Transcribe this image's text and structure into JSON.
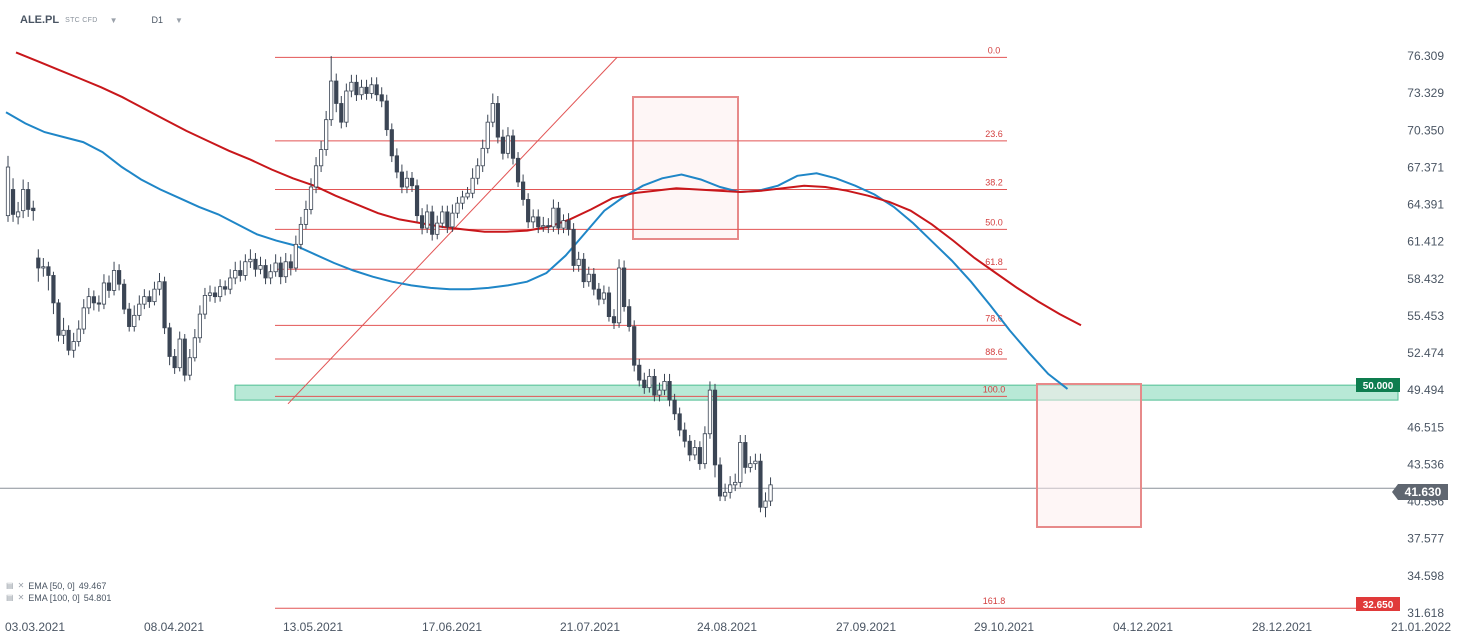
{
  "header": {
    "symbol": "ALE.PL",
    "instrument": "STC CFD",
    "timeframe": "D1"
  },
  "indicators": [
    {
      "label": "EMA [50, 0]",
      "value": "49.467",
      "color": "#1f86c7"
    },
    {
      "label": "EMA [100, 0]",
      "value": "54.801",
      "color": "#c8171b"
    }
  ],
  "chart_data": {
    "type": "candlestick",
    "y_ticks": [
      "76.309",
      "73.329",
      "70.350",
      "67.371",
      "64.391",
      "61.412",
      "58.432",
      "55.453",
      "52.474",
      "49.494",
      "46.515",
      "43.536",
      "40.556",
      "37.577",
      "34.598",
      "31.618"
    ],
    "ylim": [
      31.618,
      76.309
    ],
    "x_ticks": [
      "03.03.2021",
      "08.04.2021",
      "13.05.2021",
      "17.06.2021",
      "21.07.2021",
      "24.08.2021",
      "27.09.2021",
      "29.10.2021",
      "04.12.2021",
      "28.12.2021",
      "21.01.2022"
    ],
    "fib_levels": [
      {
        "label": "0.0",
        "value": 76.2
      },
      {
        "label": "23.6",
        "value": 69.5
      },
      {
        "label": "38.2",
        "value": 65.6
      },
      {
        "label": "50.0",
        "value": 62.4
      },
      {
        "label": "61.8",
        "value": 59.2
      },
      {
        "label": "78.6",
        "value": 54.7
      },
      {
        "label": "88.6",
        "value": 52.0
      },
      {
        "label": "100.0",
        "value": 49.0
      },
      {
        "label": "161.8",
        "value": 32.0
      }
    ],
    "price_labels": [
      {
        "value": "50.000",
        "color": "#0e7d4f"
      },
      {
        "value": "41.630",
        "color": "#5f6670"
      },
      {
        "value": "32.650",
        "color": "#e03a3a"
      }
    ],
    "support_zone": {
      "low": 48.7,
      "high": 49.9
    },
    "candles": [
      [
        63.5,
        67.4,
        63.0,
        68.3
      ],
      [
        65.6,
        63.6,
        63.0,
        66.5
      ],
      [
        63.4,
        63.8,
        62.8,
        64.6
      ],
      [
        63.9,
        65.6,
        63.3,
        66.4
      ],
      [
        65.6,
        64.0,
        63.4,
        66.2
      ],
      [
        64.1,
        63.9,
        63.1,
        64.7
      ],
      [
        60.1,
        59.3,
        58.2,
        60.8
      ],
      [
        59.3,
        59.4,
        58.6,
        60.1
      ],
      [
        59.4,
        58.7,
        57.5,
        59.8
      ],
      [
        58.7,
        56.5,
        55.6,
        59.0
      ],
      [
        56.5,
        53.9,
        53.4,
        56.8
      ],
      [
        53.9,
        54.3,
        53.2,
        55.3
      ],
      [
        54.3,
        52.7,
        52.3,
        54.7
      ],
      [
        52.7,
        53.4,
        52.1,
        54.1
      ],
      [
        53.4,
        54.4,
        53.0,
        55.1
      ],
      [
        54.4,
        56.1,
        54.0,
        56.8
      ],
      [
        56.1,
        57.0,
        55.6,
        57.7
      ],
      [
        57.0,
        56.5,
        55.9,
        57.5
      ],
      [
        56.5,
        56.4,
        55.8,
        57.1
      ],
      [
        56.4,
        58.1,
        56.0,
        58.8
      ],
      [
        58.1,
        57.5,
        56.9,
        58.7
      ],
      [
        57.5,
        59.1,
        57.1,
        59.8
      ],
      [
        59.1,
        58.0,
        57.5,
        59.6
      ],
      [
        58.0,
        56.0,
        55.6,
        58.4
      ],
      [
        56.0,
        54.6,
        54.2,
        56.5
      ],
      [
        54.6,
        55.5,
        54.2,
        56.3
      ],
      [
        55.5,
        56.4,
        55.1,
        57.1
      ],
      [
        56.4,
        57.0,
        56.0,
        57.6
      ],
      [
        57.0,
        56.6,
        56.1,
        57.5
      ],
      [
        56.6,
        57.6,
        56.3,
        58.2
      ],
      [
        57.6,
        58.2,
        57.1,
        58.9
      ],
      [
        58.2,
        54.5,
        54.0,
        58.6
      ],
      [
        54.5,
        52.2,
        51.5,
        54.9
      ],
      [
        52.2,
        51.3,
        50.8,
        52.8
      ],
      [
        51.3,
        53.6,
        51.0,
        54.2
      ],
      [
        53.6,
        50.7,
        50.2,
        54.0
      ],
      [
        50.7,
        52.1,
        50.3,
        52.8
      ],
      [
        52.1,
        53.7,
        51.8,
        54.4
      ],
      [
        53.7,
        55.6,
        53.3,
        56.3
      ],
      [
        55.6,
        57.1,
        55.2,
        57.7
      ],
      [
        57.1,
        57.3,
        56.6,
        57.9
      ],
      [
        57.3,
        57.0,
        56.5,
        57.8
      ],
      [
        57.0,
        57.8,
        56.6,
        58.4
      ],
      [
        57.8,
        57.6,
        57.1,
        58.3
      ],
      [
        57.6,
        58.5,
        57.2,
        59.2
      ],
      [
        58.5,
        59.1,
        58.0,
        59.8
      ],
      [
        59.1,
        58.7,
        58.2,
        59.9
      ],
      [
        58.7,
        59.8,
        58.3,
        60.4
      ],
      [
        59.8,
        60.0,
        59.3,
        60.8
      ],
      [
        60.0,
        59.2,
        58.6,
        60.5
      ],
      [
        59.2,
        59.5,
        58.8,
        60.2
      ],
      [
        59.5,
        58.5,
        58.0,
        60.0
      ],
      [
        58.5,
        59.0,
        58.0,
        59.6
      ],
      [
        59.0,
        59.7,
        58.6,
        60.4
      ],
      [
        59.7,
        58.6,
        58.0,
        60.2
      ],
      [
        58.6,
        59.8,
        58.1,
        60.5
      ],
      [
        59.8,
        59.3,
        58.7,
        60.4
      ],
      [
        59.3,
        61.2,
        59.0,
        61.9
      ],
      [
        61.2,
        62.8,
        60.8,
        63.4
      ],
      [
        62.8,
        64.0,
        62.4,
        64.7
      ],
      [
        64.0,
        65.8,
        63.6,
        66.5
      ],
      [
        65.8,
        67.5,
        65.3,
        68.2
      ],
      [
        67.5,
        68.8,
        67.0,
        69.5
      ],
      [
        68.8,
        71.2,
        68.3,
        71.9
      ],
      [
        71.2,
        74.3,
        70.7,
        76.3
      ],
      [
        74.3,
        72.5,
        71.8,
        74.9
      ],
      [
        72.5,
        71.0,
        70.5,
        73.1
      ],
      [
        71.0,
        73.5,
        70.6,
        74.1
      ],
      [
        73.5,
        74.2,
        73.0,
        74.8
      ],
      [
        74.2,
        73.2,
        72.7,
        74.8
      ],
      [
        73.2,
        73.8,
        72.8,
        74.4
      ],
      [
        73.8,
        73.3,
        72.8,
        74.4
      ],
      [
        73.3,
        74.0,
        72.9,
        74.6
      ],
      [
        74.0,
        73.2,
        72.7,
        74.6
      ],
      [
        73.2,
        72.7,
        72.2,
        73.8
      ],
      [
        72.7,
        70.4,
        69.9,
        73.2
      ],
      [
        70.4,
        68.3,
        67.8,
        70.9
      ],
      [
        68.3,
        67.0,
        66.5,
        68.9
      ],
      [
        67.0,
        65.8,
        65.3,
        67.6
      ],
      [
        65.8,
        66.5,
        65.3,
        67.1
      ],
      [
        66.5,
        65.9,
        65.4,
        67.0
      ],
      [
        65.9,
        63.5,
        63.0,
        66.4
      ],
      [
        63.5,
        62.5,
        62.0,
        64.1
      ],
      [
        62.5,
        63.8,
        62.1,
        64.4
      ],
      [
        63.8,
        62.0,
        61.5,
        64.3
      ],
      [
        62.0,
        62.9,
        61.6,
        63.5
      ],
      [
        62.9,
        63.8,
        62.5,
        64.3
      ],
      [
        63.8,
        62.6,
        62.1,
        64.3
      ],
      [
        62.6,
        63.7,
        62.2,
        64.4
      ],
      [
        63.7,
        64.5,
        63.3,
        65.0
      ],
      [
        64.5,
        65.0,
        64.0,
        65.5
      ],
      [
        65.0,
        65.3,
        64.8,
        65.8
      ],
      [
        65.3,
        66.5,
        64.9,
        67.3
      ],
      [
        66.5,
        67.5,
        66.0,
        68.1
      ],
      [
        67.5,
        68.9,
        67.0,
        69.6
      ],
      [
        68.9,
        71.0,
        68.5,
        71.6
      ],
      [
        71.0,
        72.5,
        70.6,
        73.3
      ],
      [
        72.5,
        69.8,
        69.3,
        73.1
      ],
      [
        69.8,
        68.5,
        68.0,
        70.4
      ],
      [
        68.5,
        69.9,
        68.1,
        70.6
      ],
      [
        69.9,
        68.1,
        67.6,
        70.4
      ],
      [
        68.1,
        66.2,
        65.8,
        68.6
      ],
      [
        66.2,
        64.8,
        64.3,
        66.8
      ],
      [
        64.8,
        63.0,
        62.5,
        65.3
      ],
      [
        63.0,
        63.4,
        62.5,
        64.0
      ],
      [
        63.4,
        62.6,
        62.1,
        64.0
      ],
      [
        62.6,
        62.7,
        62.2,
        63.4
      ],
      [
        62.7,
        62.6,
        62.1,
        63.3
      ],
      [
        62.6,
        64.1,
        62.2,
        64.8
      ],
      [
        64.1,
        62.5,
        62.0,
        64.6
      ],
      [
        62.5,
        63.1,
        62.1,
        63.6
      ],
      [
        63.1,
        62.4,
        61.9,
        63.7
      ],
      [
        62.4,
        59.5,
        59.0,
        62.9
      ],
      [
        59.5,
        60.0,
        59.0,
        60.6
      ],
      [
        60.0,
        58.2,
        57.7,
        60.5
      ],
      [
        58.2,
        58.8,
        57.8,
        59.4
      ],
      [
        58.8,
        57.6,
        57.1,
        59.3
      ],
      [
        57.6,
        56.8,
        56.3,
        58.1
      ],
      [
        56.8,
        57.3,
        56.4,
        57.9
      ],
      [
        57.3,
        55.4,
        55.0,
        57.8
      ],
      [
        55.4,
        54.9,
        54.4,
        56.0
      ],
      [
        54.9,
        59.3,
        54.5,
        60.0
      ],
      [
        59.3,
        56.2,
        55.8,
        59.9
      ],
      [
        56.2,
        54.6,
        54.2,
        56.8
      ],
      [
        54.6,
        51.5,
        51.0,
        55.1
      ],
      [
        51.5,
        50.3,
        49.8,
        52.0
      ],
      [
        50.3,
        49.7,
        49.2,
        50.9
      ],
      [
        49.7,
        50.6,
        49.3,
        51.2
      ],
      [
        50.6,
        49.1,
        48.6,
        51.2
      ],
      [
        49.1,
        49.5,
        48.6,
        50.1
      ],
      [
        49.5,
        50.2,
        49.1,
        50.8
      ],
      [
        50.2,
        48.7,
        48.2,
        50.8
      ],
      [
        48.7,
        47.6,
        47.1,
        49.2
      ],
      [
        47.6,
        46.3,
        45.8,
        48.1
      ],
      [
        46.3,
        45.4,
        44.9,
        46.9
      ],
      [
        45.4,
        44.3,
        43.8,
        45.9
      ],
      [
        44.3,
        44.9,
        43.9,
        45.5
      ],
      [
        44.9,
        43.6,
        43.1,
        45.4
      ],
      [
        43.6,
        46.0,
        43.2,
        46.6
      ],
      [
        46.0,
        49.5,
        45.6,
        50.2
      ],
      [
        49.5,
        43.5,
        42.5,
        50.0
      ],
      [
        43.5,
        41.0,
        40.6,
        44.1
      ],
      [
        41.0,
        41.3,
        40.6,
        42.0
      ],
      [
        41.3,
        41.9,
        40.8,
        42.6
      ],
      [
        41.9,
        42.1,
        41.4,
        42.8
      ],
      [
        42.1,
        45.3,
        41.7,
        45.9
      ],
      [
        45.3,
        43.3,
        42.8,
        45.9
      ],
      [
        43.3,
        43.6,
        42.9,
        44.2
      ],
      [
        43.6,
        43.8,
        43.1,
        44.4
      ],
      [
        43.8,
        40.1,
        39.7,
        44.4
      ],
      [
        40.1,
        40.6,
        39.3,
        41.3
      ],
      [
        40.6,
        41.9,
        40.2,
        42.5
      ]
    ],
    "ema50": [
      71.8,
      70.9,
      70.2,
      69.8,
      69.4,
      68.6,
      67.4,
      66.4,
      65.6,
      64.9,
      64.2,
      63.6,
      62.8,
      62.0,
      61.5,
      61.1,
      60.4,
      59.7,
      59.1,
      58.6,
      58.2,
      57.9,
      57.7,
      57.6,
      57.6,
      57.7,
      57.9,
      58.2,
      58.9,
      60.3,
      62.1,
      63.9,
      65.0,
      65.9,
      66.5,
      66.8,
      66.4,
      65.8,
      65.4,
      65.5,
      65.9,
      66.7,
      66.9,
      66.5,
      65.9,
      65.2,
      64.2,
      62.9,
      61.4,
      59.9,
      58.2,
      56.3,
      54.3,
      52.5,
      50.8,
      49.6
    ],
    "ema100": [
      76.6,
      75.9,
      75.2,
      74.5,
      73.8,
      73.0,
      72.1,
      71.2,
      70.3,
      69.5,
      68.7,
      68.0,
      67.2,
      66.5,
      65.9,
      65.1,
      64.4,
      63.7,
      63.2,
      62.9,
      62.6,
      62.4,
      62.2,
      62.2,
      62.3,
      62.6,
      63.2,
      64.0,
      64.9,
      65.3,
      65.5,
      65.7,
      65.6,
      65.5,
      65.4,
      65.5,
      65.7,
      65.9,
      65.8,
      65.5,
      65.1,
      64.6,
      63.9,
      62.8,
      61.5,
      60.1,
      58.9,
      57.7,
      56.6,
      55.6,
      54.7
    ]
  }
}
